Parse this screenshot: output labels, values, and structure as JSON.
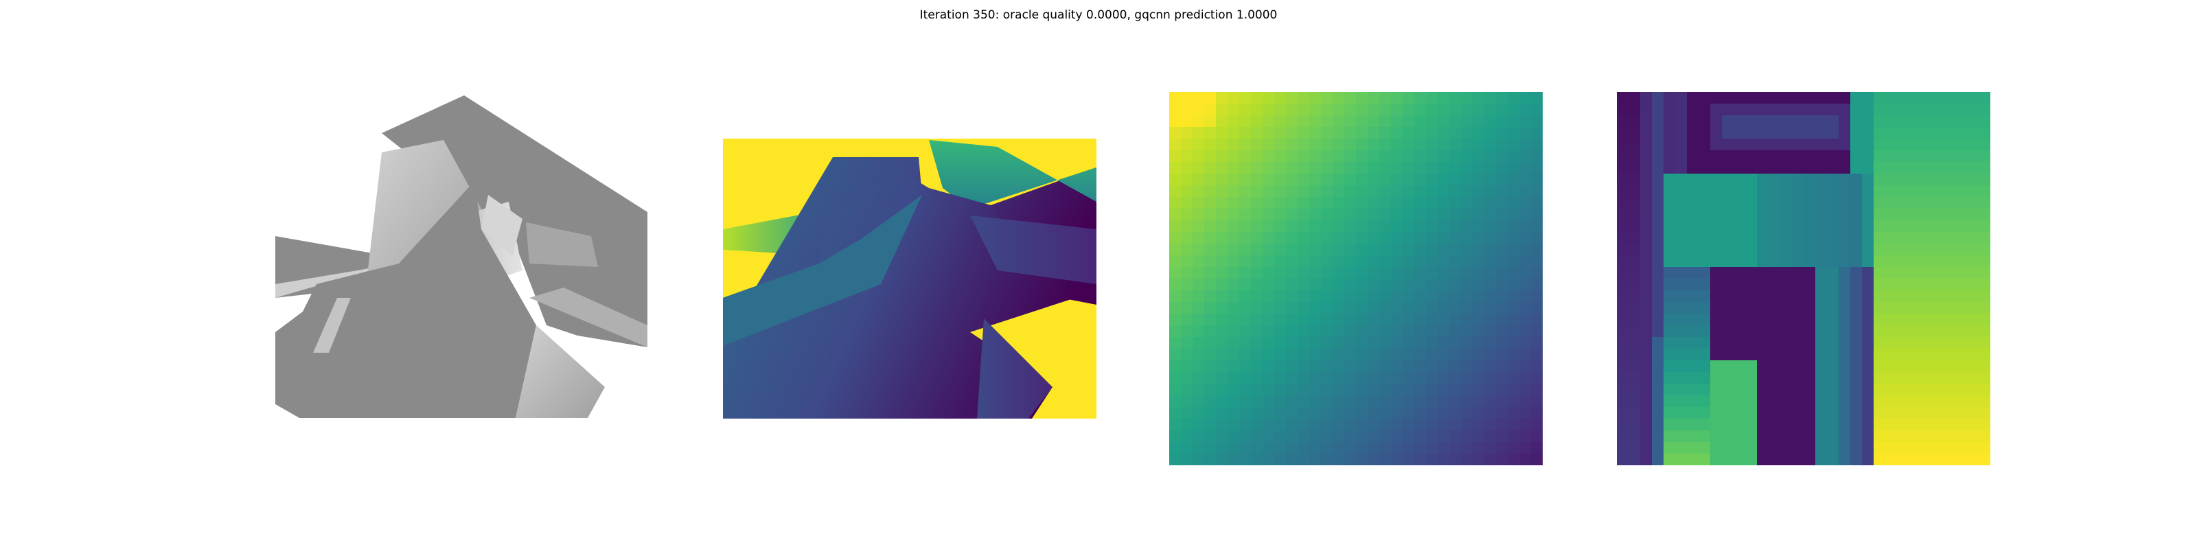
{
  "figure": {
    "title": "Iteration 350: oracle quality 0.0000, gqcnn prediction 1.0000"
  },
  "panels": [
    {
      "name": "rendered-mesh",
      "kind": "gray-render"
    },
    {
      "name": "depth-render",
      "kind": "viridis-depth"
    },
    {
      "name": "depth-crop-smooth",
      "kind": "viridis-pixel-gradient",
      "grid": 32
    },
    {
      "name": "depth-crop-blocks",
      "kind": "viridis-pixel-map",
      "grid": 32
    }
  ],
  "colors": {
    "viridis": [
      "#440154",
      "#482878",
      "#3e4989",
      "#31688e",
      "#26828e",
      "#1f9e89",
      "#35b779",
      "#6ece58",
      "#b5de2b",
      "#fde725"
    ],
    "gray_light": "#c8c8c8",
    "gray_mid": "#8a8a8a",
    "gray_dark": "#7a7a7a",
    "background": "#ffffff"
  }
}
